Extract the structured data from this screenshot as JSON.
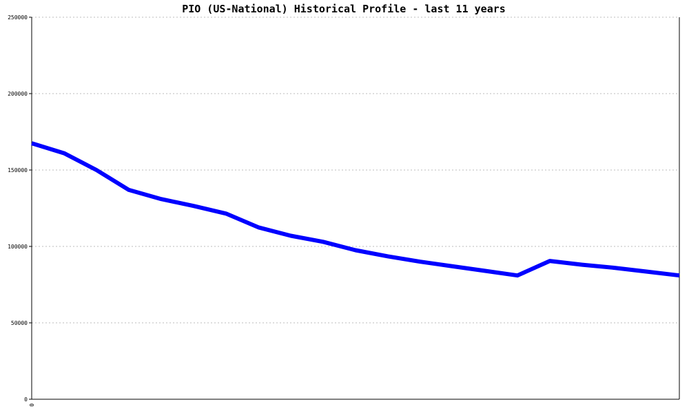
{
  "chart_data": {
    "type": "line",
    "title": "PIO (US-National) Historical Profile - last 11 years",
    "xlabel": "",
    "ylabel": "",
    "x_tick_labels": [
      "0"
    ],
    "y_ticks": [
      0,
      50000,
      100000,
      150000,
      200000,
      250000
    ],
    "y_tick_labels": [
      "0",
      "50000",
      "100000",
      "150000",
      "200000",
      "250000"
    ],
    "ylim": [
      0,
      250000
    ],
    "x": [
      0,
      1,
      2,
      3,
      4,
      5,
      6,
      7,
      8,
      9,
      10,
      11,
      12,
      13,
      14,
      15,
      16,
      17,
      18,
      19,
      20
    ],
    "grid": true,
    "series": [
      {
        "color": "#0000ff",
        "values": [
          167500,
          161000,
          150000,
          137000,
          131000,
          126500,
          121500,
          112500,
          107000,
          103000,
          97500,
          93500,
          90000,
          87000,
          84000,
          81000,
          90500,
          88000,
          86000,
          83500,
          81000
        ]
      }
    ]
  }
}
